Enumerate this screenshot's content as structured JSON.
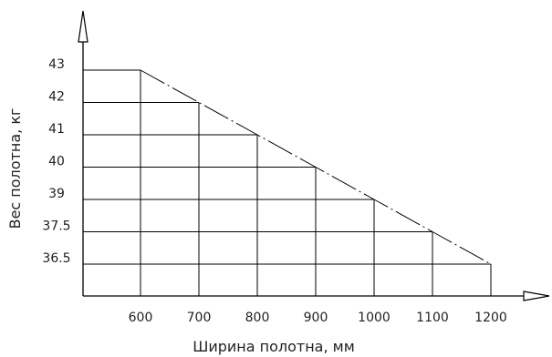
{
  "chart_data": {
    "type": "line",
    "title": "",
    "xlabel": "Ширина полотна, мм",
    "ylabel": "Вес полотна, кг",
    "x_ticks": [
      "600",
      "700",
      "800",
      "900",
      "1000",
      "1100",
      "1200"
    ],
    "y_ticks": [
      "43",
      "42",
      "41",
      "40",
      "39",
      "37.5",
      "36.5"
    ],
    "series": [
      {
        "x": [
          600,
          700,
          800,
          900,
          1000,
          1100,
          1200
        ],
        "y": [
          43,
          42,
          41,
          40,
          39,
          37.5,
          36.5
        ]
      }
    ],
    "grid": true,
    "line_style": "dash-dot"
  }
}
